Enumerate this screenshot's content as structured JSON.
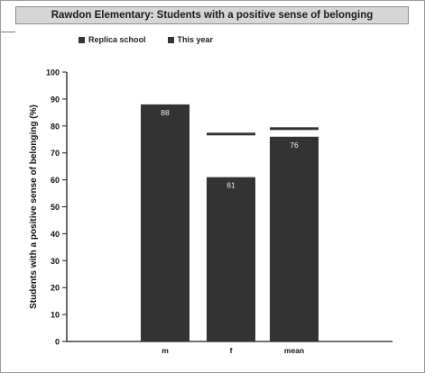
{
  "colors": {
    "bar": "#333333",
    "replica_marker": "#333333",
    "axis": "#1a1a1a",
    "title_bg": "#d6d6d6"
  },
  "chart_data": {
    "type": "bar",
    "title": "Rawdon Elementary: Students with a positive sense of belonging",
    "ylabel": "Students with a positive sense of belonging (%)",
    "xlabel": "",
    "categories": [
      "m",
      "f",
      "mean"
    ],
    "series": [
      {
        "name": "This year",
        "values": [
          88,
          61,
          76
        ]
      },
      {
        "name": "Replica school",
        "values": [
          null,
          77,
          79
        ]
      }
    ],
    "data_labels": [
      "88",
      "61",
      "76"
    ],
    "ylim": [
      0,
      100
    ],
    "yticks": [
      0,
      10,
      20,
      30,
      40,
      50,
      60,
      70,
      80,
      90,
      100
    ],
    "ytick_labels": [
      "0",
      "10",
      "20",
      "30",
      "40",
      "50",
      "60",
      "70",
      "80",
      "90",
      "100"
    ],
    "grid": false,
    "legend": "top-left",
    "legend_entries": [
      "Replica school",
      "This year"
    ]
  }
}
